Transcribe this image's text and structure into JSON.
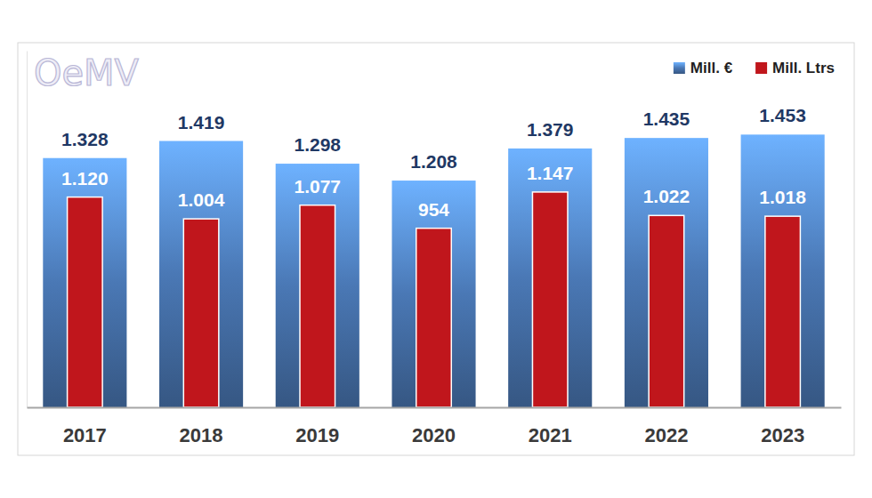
{
  "chart_data": {
    "type": "bar",
    "categories": [
      "2017",
      "2018",
      "2019",
      "2020",
      "2021",
      "2022",
      "2023"
    ],
    "series": [
      {
        "name": "Mill. €",
        "color": "#4a78b5",
        "values": [
          1328,
          1419,
          1298,
          1208,
          1379,
          1435,
          1453
        ],
        "value_labels": [
          "1.328",
          "1.419",
          "1.298",
          "1.208",
          "1.379",
          "1.435",
          "1.453"
        ]
      },
      {
        "name": "Mill. Ltrs",
        "color": "#c0161c",
        "values": [
          1120,
          1004,
          1077,
          954,
          1147,
          1022,
          1018
        ],
        "value_labels": [
          "1.120",
          "1.004",
          "1.077",
          "954",
          "1.147",
          "1.022",
          "1.018"
        ]
      }
    ],
    "ylim": [
      0,
      1900
    ],
    "yticks": [],
    "tick_labels": "x",
    "data_labels": true,
    "legend": "top-right",
    "grid": false,
    "annotations": [
      "OeMV"
    ]
  }
}
